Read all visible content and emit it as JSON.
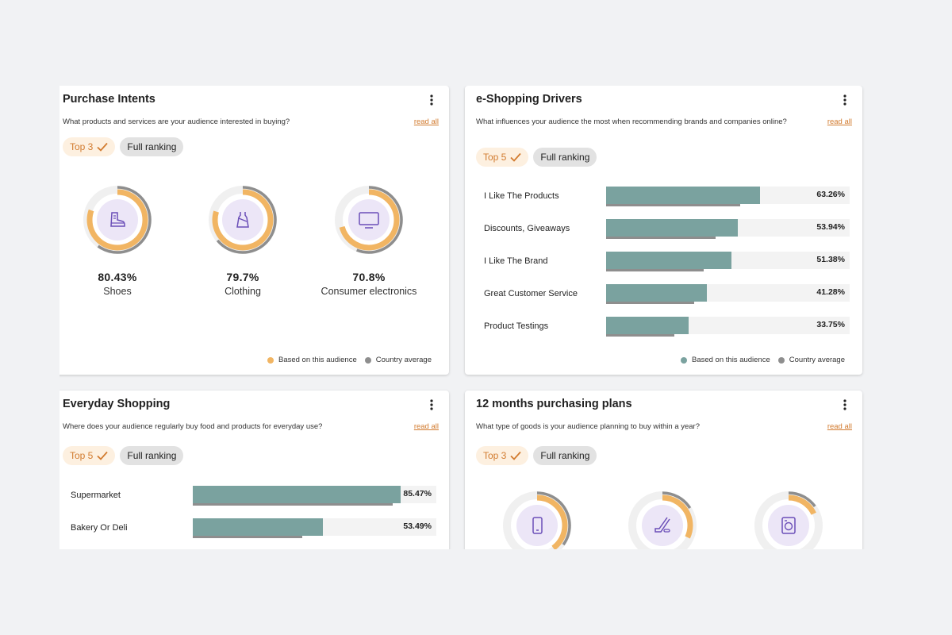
{
  "colors": {
    "accent": "#d27b2f",
    "audience": "#f1b563",
    "country": "#8e8e8e",
    "bar": "#7aa29f",
    "icon_bg": "#ece6f7",
    "icon_stroke": "#6b4fb8"
  },
  "legend": {
    "audience": "Based on this audience",
    "country": "Country average"
  },
  "purchase_intents": {
    "title": "Purchase Intents",
    "subtitle": "What products and services are your audience interested in buying?",
    "read_all": "read all",
    "top_chip": "Top 3",
    "full_chip": "Full ranking",
    "items": [
      {
        "pct": "80.43%",
        "label": "Shoes",
        "icon": "boot-icon",
        "audience": 80.43,
        "country": 60
      },
      {
        "pct": "79.7%",
        "label": "Clothing",
        "icon": "dress-icon",
        "audience": 79.7,
        "country": 64
      },
      {
        "pct": "70.8%",
        "label": "Consumer electronics",
        "icon": "monitor-icon",
        "audience": 70.8,
        "country": 56
      }
    ]
  },
  "eshopping_drivers": {
    "title": "e-Shopping Drivers",
    "subtitle": "What influences your audience the most when recommending brands and companies online?",
    "read_all": "read all",
    "top_chip": "Top 5",
    "full_chip": "Full ranking",
    "rows": [
      {
        "label": "I Like The Products",
        "value": "63.26%",
        "audience": 63.26,
        "country": 55
      },
      {
        "label": "Discounts, Giveaways",
        "value": "53.94%",
        "audience": 53.94,
        "country": 45
      },
      {
        "label": "I Like The Brand",
        "value": "51.38%",
        "audience": 51.38,
        "country": 40
      },
      {
        "label": "Great Customer Service",
        "value": "41.28%",
        "audience": 41.28,
        "country": 36
      },
      {
        "label": "Product Testings",
        "value": "33.75%",
        "audience": 33.75,
        "country": 28
      }
    ]
  },
  "everyday_shopping": {
    "title": "Everyday Shopping",
    "subtitle": "Where does your audience regularly buy food and products for everyday use?",
    "read_all": "read all",
    "top_chip": "Top 5",
    "full_chip": "Full ranking",
    "rows": [
      {
        "label": "Supermarket",
        "value": "85.47%",
        "audience": 85.47,
        "country": 82
      },
      {
        "label": "Bakery Or Deli",
        "value": "53.49%",
        "audience": 53.49,
        "country": 45
      }
    ]
  },
  "purchasing_plans": {
    "title": "12 months purchasing plans",
    "subtitle": "What type of goods is your audience planning to buy within a year?",
    "read_all": "read all",
    "top_chip": "Top 3",
    "full_chip": "Full ranking",
    "items": [
      {
        "icon": "smartphone-icon",
        "audience": 40,
        "country": 35
      },
      {
        "icon": "hockey-stick-icon",
        "audience": 32,
        "country": 16
      },
      {
        "icon": "washing-machine-icon",
        "audience": 18,
        "country": 15
      }
    ]
  }
}
